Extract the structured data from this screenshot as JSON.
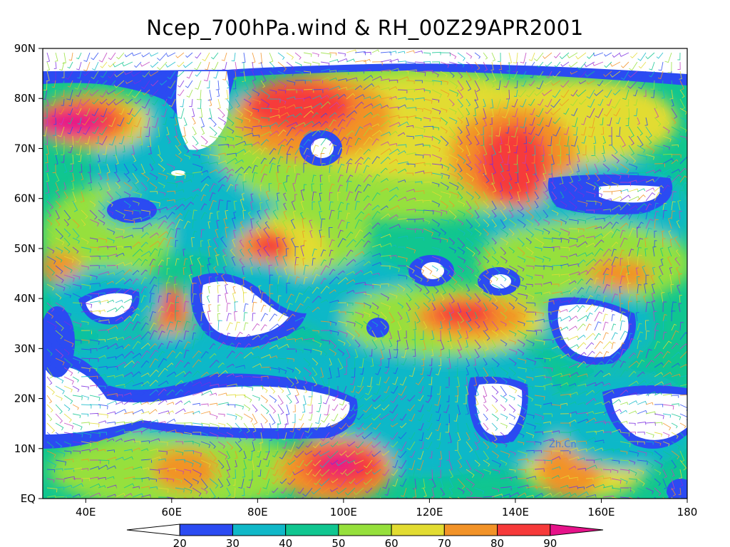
{
  "title": "Ncep_700hPa.wind & RH_00Z29APR2001",
  "axes": {
    "lat_labels": [
      "90N",
      "80N",
      "70N",
      "60N",
      "50N",
      "40N",
      "30N",
      "20N",
      "10N",
      "EQ"
    ],
    "lon_labels": [
      "40E",
      "60E",
      "80E",
      "100E",
      "120E",
      "140E",
      "160E",
      "180"
    ],
    "lat_range": [
      0,
      90
    ],
    "lon_range": [
      30,
      180
    ]
  },
  "colorbar": {
    "levels": [
      "20",
      "30",
      "40",
      "50",
      "60",
      "70",
      "80",
      "90"
    ],
    "colors": [
      "#ffffff",
      "#2b4bf2",
      "#10b8c8",
      "#10c690",
      "#96e03c",
      "#e2dc32",
      "#f29328",
      "#f63a3a",
      "#e6138a"
    ]
  },
  "watermark": "Zh.Cn"
}
